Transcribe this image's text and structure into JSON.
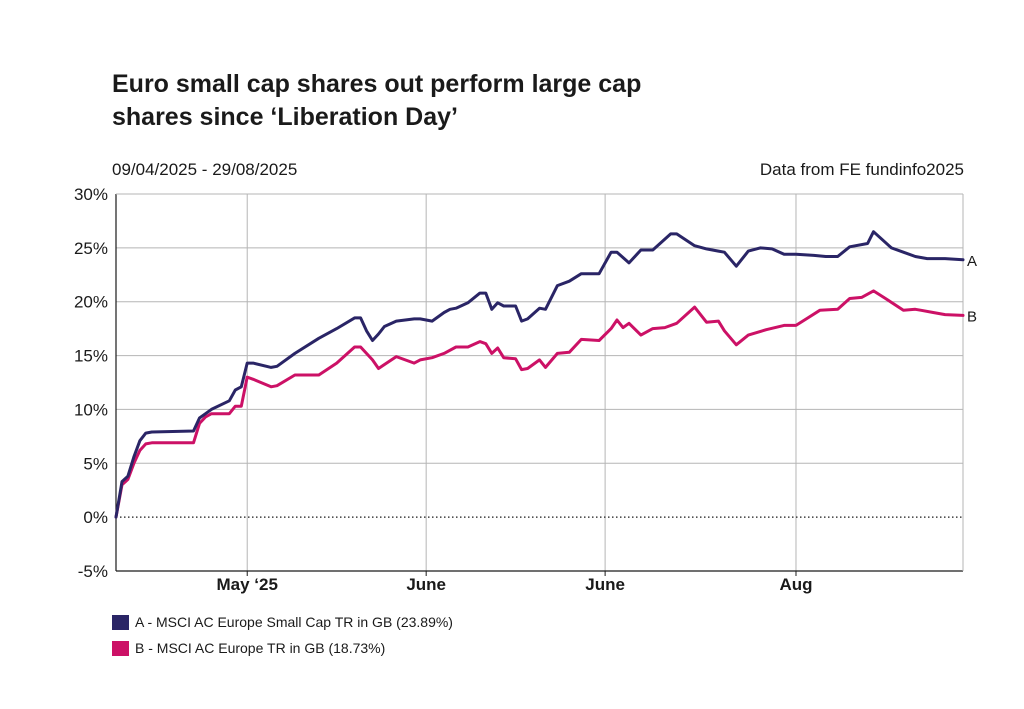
{
  "header": {
    "title_line1": "Euro small cap shares out perform large cap",
    "title_line2": "shares since ‘Liberation Day’",
    "date_range": "09/04/2025 - 29/08/2025",
    "source": "Data from FE fundinfo2025"
  },
  "colors": {
    "series_a": "#2a2566",
    "series_b": "#cc1166",
    "grid": "#b5b5b5",
    "axis": "#1a1a1a"
  },
  "legend": [
    {
      "label": "A - MSCI AC Europe Small Cap TR in GB (23.89%)"
    },
    {
      "label": "B - MSCI AC Europe  TR in GB (18.73%)"
    }
  ],
  "chart_data": {
    "type": "line",
    "title": "",
    "xlabel": "",
    "ylabel": "",
    "ylim": [
      -5,
      30
    ],
    "y_ticks": [
      "30%",
      "25%",
      "20%",
      "15%",
      "10%",
      "5%",
      "0%",
      "-5%"
    ],
    "y_tick_values": [
      30,
      25,
      20,
      15,
      10,
      5,
      0,
      -5
    ],
    "x_range": [
      "2025-04-09",
      "2025-08-29"
    ],
    "x_tick_labels": [
      {
        "label": "May ‘25",
        "date": "2025-05-01"
      },
      {
        "label": "June",
        "date": "2025-05-31"
      },
      {
        "label": "June",
        "date": "2025-06-30"
      },
      {
        "label": "Aug",
        "date": "2025-08-01"
      }
    ],
    "grid": true,
    "zero_line": "dotted",
    "series": [
      {
        "name": "A",
        "x": [
          "2025-04-09",
          "2025-04-10",
          "2025-04-11",
          "2025-04-12",
          "2025-04-13",
          "2025-04-14",
          "2025-04-15",
          "2025-04-22",
          "2025-04-23",
          "2025-04-24",
          "2025-04-25",
          "2025-04-28",
          "2025-04-29",
          "2025-04-30",
          "2025-05-01",
          "2025-05-02",
          "2025-05-05",
          "2025-05-06",
          "2025-05-09",
          "2025-05-13",
          "2025-05-16",
          "2025-05-19",
          "2025-05-20",
          "2025-05-21",
          "2025-05-22",
          "2025-05-23",
          "2025-05-24",
          "2025-05-26",
          "2025-05-29",
          "2025-05-30",
          "2025-06-01",
          "2025-06-03",
          "2025-06-04",
          "2025-06-05",
          "2025-06-07",
          "2025-06-09",
          "2025-06-10",
          "2025-06-11",
          "2025-06-12",
          "2025-06-13",
          "2025-06-15",
          "2025-06-16",
          "2025-06-17",
          "2025-06-19",
          "2025-06-20",
          "2025-06-22",
          "2025-06-24",
          "2025-06-26",
          "2025-06-29",
          "2025-07-01",
          "2025-07-02",
          "2025-07-04",
          "2025-07-06",
          "2025-07-08",
          "2025-07-11",
          "2025-07-12",
          "2025-07-15",
          "2025-07-17",
          "2025-07-19",
          "2025-07-20",
          "2025-07-22",
          "2025-07-24",
          "2025-07-26",
          "2025-07-28",
          "2025-07-30",
          "2025-08-01",
          "2025-08-04",
          "2025-08-06",
          "2025-08-08",
          "2025-08-10",
          "2025-08-13",
          "2025-08-14",
          "2025-08-17",
          "2025-08-19",
          "2025-08-21",
          "2025-08-23",
          "2025-08-26",
          "2025-08-29"
        ],
        "y": [
          0.0,
          3.3,
          3.8,
          5.6,
          7.1,
          7.8,
          7.9,
          8.0,
          9.2,
          9.6,
          10.0,
          10.8,
          11.8,
          12.1,
          14.3,
          14.3,
          13.9,
          14.0,
          15.2,
          16.6,
          17.5,
          18.5,
          18.5,
          17.3,
          16.4,
          17.0,
          17.7,
          18.2,
          18.4,
          18.4,
          18.2,
          19.0,
          19.3,
          19.4,
          19.9,
          20.8,
          20.8,
          19.3,
          19.9,
          19.6,
          19.6,
          18.2,
          18.4,
          19.4,
          19.3,
          21.5,
          21.9,
          22.6,
          22.6,
          24.6,
          24.6,
          23.6,
          24.8,
          24.8,
          26.3,
          26.3,
          25.2,
          24.9,
          24.7,
          24.6,
          23.3,
          24.7,
          25.0,
          24.9,
          24.4,
          24.4,
          24.3,
          24.2,
          24.2,
          25.1,
          25.4,
          26.5,
          25.0,
          24.6,
          24.2,
          24.0,
          24.0,
          23.89
        ],
        "end_label": "A"
      },
      {
        "name": "B",
        "x": [
          "2025-04-09",
          "2025-04-10",
          "2025-04-11",
          "2025-04-12",
          "2025-04-13",
          "2025-04-14",
          "2025-04-15",
          "2025-04-22",
          "2025-04-23",
          "2025-04-24",
          "2025-04-25",
          "2025-04-28",
          "2025-04-29",
          "2025-04-30",
          "2025-05-01",
          "2025-05-02",
          "2025-05-05",
          "2025-05-06",
          "2025-05-09",
          "2025-05-13",
          "2025-05-16",
          "2025-05-19",
          "2025-05-20",
          "2025-05-22",
          "2025-05-23",
          "2025-05-26",
          "2025-05-29",
          "2025-05-30",
          "2025-06-01",
          "2025-06-03",
          "2025-06-05",
          "2025-06-07",
          "2025-06-09",
          "2025-06-10",
          "2025-06-11",
          "2025-06-12",
          "2025-06-13",
          "2025-06-15",
          "2025-06-16",
          "2025-06-17",
          "2025-06-19",
          "2025-06-20",
          "2025-06-22",
          "2025-06-24",
          "2025-06-26",
          "2025-06-29",
          "2025-07-01",
          "2025-07-02",
          "2025-07-03",
          "2025-07-04",
          "2025-07-06",
          "2025-07-08",
          "2025-07-10",
          "2025-07-12",
          "2025-07-15",
          "2025-07-17",
          "2025-07-19",
          "2025-07-20",
          "2025-07-22",
          "2025-07-24",
          "2025-07-27",
          "2025-07-30",
          "2025-08-01",
          "2025-08-03",
          "2025-08-05",
          "2025-08-08",
          "2025-08-10",
          "2025-08-12",
          "2025-08-14",
          "2025-08-16",
          "2025-08-19",
          "2025-08-21",
          "2025-08-22",
          "2025-08-24",
          "2025-08-26",
          "2025-08-29"
        ],
        "y": [
          0.0,
          3.0,
          3.5,
          5.0,
          6.2,
          6.8,
          6.9,
          6.9,
          8.7,
          9.3,
          9.6,
          9.6,
          10.3,
          10.3,
          13.0,
          12.8,
          12.1,
          12.2,
          13.2,
          13.2,
          14.3,
          15.8,
          15.8,
          14.6,
          13.8,
          14.9,
          14.3,
          14.6,
          14.8,
          15.2,
          15.8,
          15.8,
          16.3,
          16.1,
          15.2,
          15.7,
          14.8,
          14.7,
          13.7,
          13.8,
          14.6,
          13.9,
          15.2,
          15.3,
          16.5,
          16.4,
          17.5,
          18.3,
          17.6,
          18.0,
          16.9,
          17.5,
          17.6,
          18.0,
          19.5,
          18.1,
          18.2,
          17.3,
          16.0,
          16.9,
          17.4,
          17.8,
          17.8,
          18.5,
          19.2,
          19.3,
          20.3,
          20.4,
          21.0,
          20.3,
          19.2,
          19.3,
          19.2,
          19.0,
          18.8,
          18.73
        ],
        "end_label": "B"
      }
    ]
  }
}
